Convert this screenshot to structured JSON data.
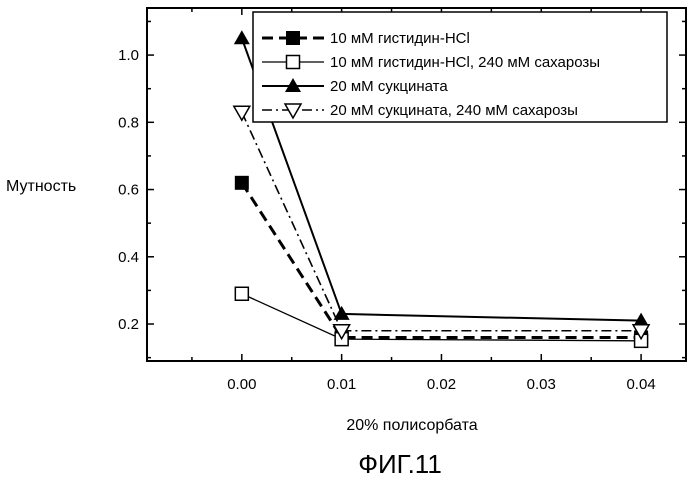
{
  "figure_label": "ФИГ.11",
  "chart_data": {
    "type": "line",
    "xlabel": "20% полисорбата",
    "ylabel": "Мутность",
    "x": [
      0.0,
      0.01,
      0.04
    ],
    "x_ticks": [
      "0.00",
      "0.01",
      "0.02",
      "0.03",
      "0.04"
    ],
    "x_tick_values": [
      0.0,
      0.01,
      0.02,
      0.03,
      0.04
    ],
    "y_ticks": [
      "0.2",
      "0.4",
      "0.6",
      "0.8",
      "1.0"
    ],
    "y_tick_values": [
      0.2,
      0.4,
      0.6,
      0.8,
      1.0
    ],
    "xlim": [
      -0.0095,
      0.0445
    ],
    "ylim": [
      0.09,
      1.14
    ],
    "grid": false,
    "legend_position": "top-right",
    "series": [
      {
        "name": "10 мМ гистидин-HCl",
        "values": [
          0.62,
          0.16,
          0.16
        ],
        "marker": "square-filled",
        "dash": "dashed",
        "stroke_width": 3
      },
      {
        "name": "10 мМ гистидин-HCl, 240 мМ сахарозы",
        "values": [
          0.29,
          0.155,
          0.15
        ],
        "marker": "square-open",
        "dash": "solid",
        "stroke_width": 1.3
      },
      {
        "name": "20 мМ сукцината",
        "values": [
          1.05,
          0.23,
          0.21
        ],
        "marker": "triangle-up-filled",
        "dash": "solid",
        "stroke_width": 2
      },
      {
        "name": "20 мМ сукцината, 240 мМ сахарозы",
        "values": [
          0.83,
          0.18,
          0.18
        ],
        "marker": "triangle-down-open",
        "dash": "dashdot",
        "stroke_width": 1.6
      }
    ]
  }
}
